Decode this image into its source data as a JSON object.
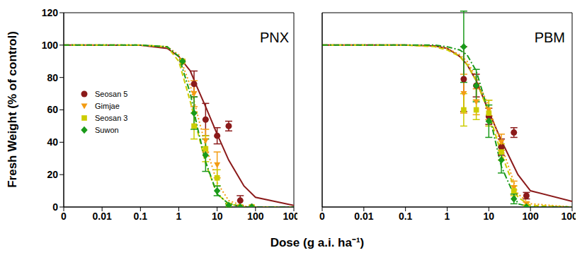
{
  "chart_data": [
    {
      "type": "scatter",
      "title": "PNX",
      "ylabel": "Fresh Weight (% of control)",
      "xlabel": "Dose (g a.i. ha⁻¹)",
      "log": "x",
      "legend": "left",
      "tick_labels": true,
      "xlim": [
        0.001,
        1000
      ],
      "xticks": [
        {
          "value": 0.001,
          "label": "0"
        },
        0.01,
        0.1,
        1,
        10,
        100,
        1000
      ],
      "ylim": [
        0,
        120
      ],
      "yticks": [
        0,
        20,
        40,
        60,
        80,
        100,
        120
      ],
      "x": [
        1.25,
        2.5,
        5,
        10,
        20,
        40,
        80
      ],
      "curve_x": [
        0.001,
        0.1,
        0.5,
        1,
        2,
        3,
        5,
        10,
        20,
        50,
        100,
        1000
      ],
      "series": [
        {
          "name": "Seosan 5",
          "color": "#8b1a1a",
          "marker": "circle",
          "line_style": "solid",
          "values": [
            90,
            76,
            54,
            44,
            50,
            4,
            0
          ],
          "errors": [
            0,
            8,
            10,
            5,
            3,
            3,
            0
          ],
          "curve_values": [
            100,
            99.9,
            98,
            93,
            84,
            74,
            62,
            45,
            29,
            13,
            6,
            1
          ]
        },
        {
          "name": "Gimjae",
          "color": "#f39c12",
          "marker": "triangle",
          "line_style": "dotted",
          "values": [
            90,
            70,
            41,
            26,
            1,
            0,
            0
          ],
          "errors": [
            0,
            8,
            7,
            8,
            1,
            0,
            0
          ],
          "curve_values": [
            100,
            100,
            99,
            94,
            75,
            58,
            38,
            15,
            4,
            0.5,
            0,
            0
          ]
        },
        {
          "name": "Seosan 3",
          "color": "#cccc00",
          "marker": "square",
          "line_style": "dashed",
          "values": [
            90,
            50,
            36,
            18,
            1,
            0,
            0
          ],
          "errors": [
            0,
            8,
            8,
            5,
            1,
            0,
            0
          ],
          "curve_values": [
            100,
            100,
            99,
            90,
            65,
            48,
            27,
            8,
            2,
            0,
            0,
            0
          ]
        },
        {
          "name": "Suwon",
          "color": "#1a9a1a",
          "marker": "diamond",
          "line_style": "dashdot",
          "values": [
            90,
            58,
            32,
            10,
            1,
            0,
            0
          ],
          "errors": [
            0,
            10,
            10,
            3,
            1,
            0,
            0
          ],
          "curve_values": [
            100,
            100,
            99,
            93,
            70,
            50,
            28,
            8,
            2,
            0,
            0,
            0
          ]
        }
      ]
    },
    {
      "type": "scatter",
      "title": "PBM",
      "log": "x",
      "tick_labels": "x",
      "xlim": [
        0.001,
        1000
      ],
      "xticks": [
        {
          "value": 0.001,
          "label": "0"
        },
        0.01,
        0.1,
        1,
        10,
        100,
        1000
      ],
      "ylim": [
        0,
        120
      ],
      "yticks": [
        0,
        20,
        40,
        60,
        80,
        100,
        120
      ],
      "x": [
        2.5,
        5,
        10,
        20,
        40,
        80
      ],
      "curve_x": [
        0.001,
        0.1,
        0.5,
        1,
        2,
        3,
        5,
        10,
        20,
        50,
        100,
        1000
      ],
      "series": [
        {
          "name": "Seosan 5",
          "color": "#8b1a1a",
          "marker": "circle",
          "line_style": "solid",
          "values": [
            79,
            75,
            56,
            37,
            46,
            7
          ],
          "errors": [
            20,
            7,
            5,
            5,
            3,
            2
          ],
          "curve_values": [
            100,
            100,
            99.5,
            98,
            93,
            88,
            78,
            59,
            41,
            20,
            10,
            3.5
          ]
        },
        {
          "name": "Gimjae",
          "color": "#f39c12",
          "marker": "triangle",
          "line_style": "dotted",
          "values": [
            70,
            65,
            60,
            40,
            12,
            2
          ],
          "errors": [
            12,
            8,
            6,
            5,
            4,
            1
          ],
          "curve_values": [
            100,
            100,
            99.5,
            98,
            94,
            90,
            80,
            62,
            38,
            8,
            2,
            0
          ]
        },
        {
          "name": "Seosan 3",
          "color": "#cccc00",
          "marker": "square",
          "line_style": "dashed",
          "values": [
            60,
            60,
            58,
            34,
            10,
            0
          ],
          "errors": [
            10,
            6,
            8,
            5,
            3,
            0
          ],
          "curve_values": [
            100,
            100,
            99,
            97,
            93,
            88,
            78,
            58,
            33,
            6,
            1,
            0
          ]
        },
        {
          "name": "Suwon",
          "color": "#1a9a1a",
          "marker": "diamond",
          "line_style": "dashdot",
          "values": [
            99,
            75,
            53,
            29,
            5,
            0
          ],
          "errors": [
            22,
            10,
            10,
            8,
            3,
            0
          ],
          "curve_values": [
            100,
            100,
            100,
            99,
            97,
            94,
            84,
            58,
            25,
            2,
            0,
            0
          ]
        }
      ]
    }
  ]
}
